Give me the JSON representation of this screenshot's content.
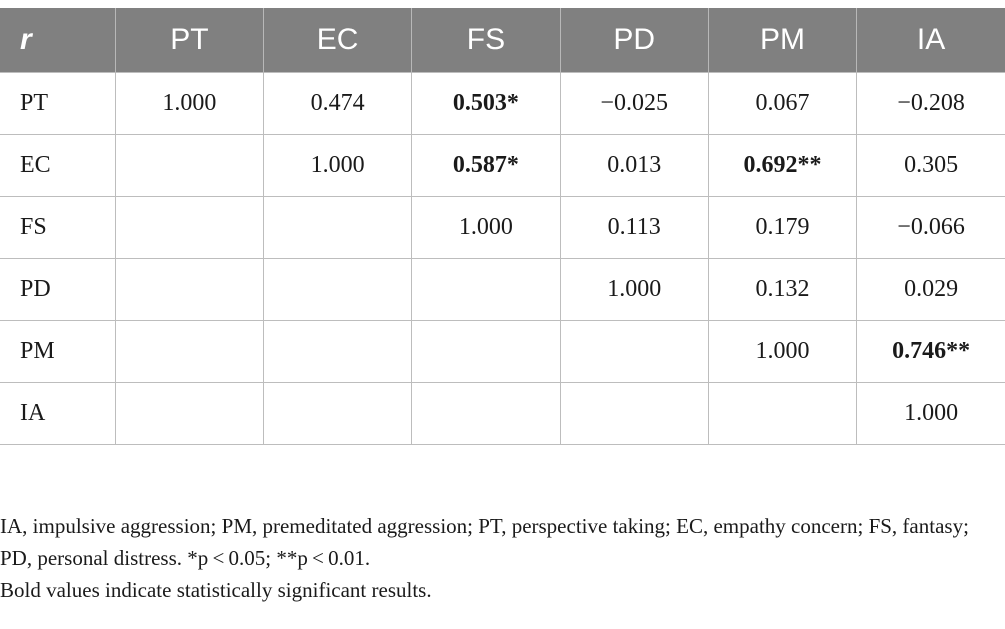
{
  "table": {
    "corner_label": "r",
    "columns": [
      "PT",
      "EC",
      "FS",
      "PD",
      "PM",
      "IA"
    ],
    "rows": [
      {
        "label": "PT",
        "cells": [
          {
            "v": "1.000",
            "b": false
          },
          {
            "v": "0.474",
            "b": false
          },
          {
            "v": "0.503*",
            "b": true
          },
          {
            "v": "−0.025",
            "b": false
          },
          {
            "v": "0.067",
            "b": false
          },
          {
            "v": "−0.208",
            "b": false
          }
        ]
      },
      {
        "label": "EC",
        "cells": [
          {
            "v": "",
            "b": false
          },
          {
            "v": "1.000",
            "b": false
          },
          {
            "v": "0.587*",
            "b": true
          },
          {
            "v": "0.013",
            "b": false
          },
          {
            "v": "0.692**",
            "b": true
          },
          {
            "v": "0.305",
            "b": false
          }
        ]
      },
      {
        "label": "FS",
        "cells": [
          {
            "v": "",
            "b": false
          },
          {
            "v": "",
            "b": false
          },
          {
            "v": "1.000",
            "b": false
          },
          {
            "v": "0.113",
            "b": false
          },
          {
            "v": "0.179",
            "b": false
          },
          {
            "v": "−0.066",
            "b": false
          }
        ]
      },
      {
        "label": "PD",
        "cells": [
          {
            "v": "",
            "b": false
          },
          {
            "v": "",
            "b": false
          },
          {
            "v": "",
            "b": false
          },
          {
            "v": "1.000",
            "b": false
          },
          {
            "v": "0.132",
            "b": false
          },
          {
            "v": "0.029",
            "b": false
          }
        ]
      },
      {
        "label": "PM",
        "cells": [
          {
            "v": "",
            "b": false
          },
          {
            "v": "",
            "b": false
          },
          {
            "v": "",
            "b": false
          },
          {
            "v": "",
            "b": false
          },
          {
            "v": "1.000",
            "b": false
          },
          {
            "v": "0.746**",
            "b": true
          }
        ]
      },
      {
        "label": "IA",
        "cells": [
          {
            "v": "",
            "b": false
          },
          {
            "v": "",
            "b": false
          },
          {
            "v": "",
            "b": false
          },
          {
            "v": "",
            "b": false
          },
          {
            "v": "",
            "b": false
          },
          {
            "v": "1.000",
            "b": false
          }
        ]
      }
    ]
  },
  "notes": {
    "abbreviations": "IA, impulsive aggression; PM, premeditated aggression; PT, perspective taking; EC, empathy concern; FS, fantasy; PD, personal distress. *p < 0.05; **p < 0.01.",
    "bold_note": "Bold values indicate statistically significant results."
  }
}
